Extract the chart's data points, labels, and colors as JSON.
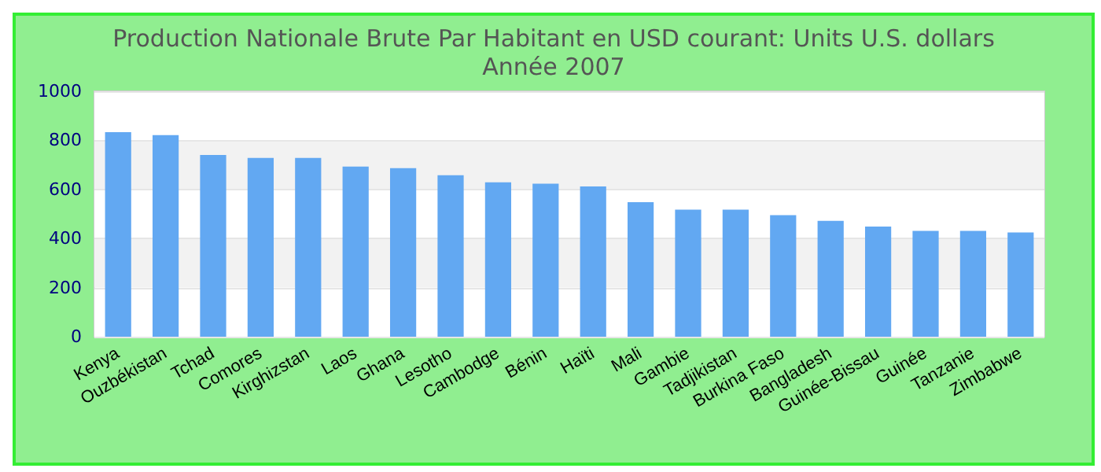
{
  "chart_data": {
    "type": "bar",
    "title": "Production Nationale Brute Par Habitant en USD courant: Units U.S. dollars",
    "subtitle": "Année 2007",
    "categories": [
      "Kenya",
      "Ouzbékistan",
      "Tchad",
      "Comores",
      "Kirghizstan",
      "Laos",
      "Ghana",
      "Lesotho",
      "Cambodge",
      "Bénin",
      "Haïti",
      "Mali",
      "Gambie",
      "Tadjikistan",
      "Burkina Faso",
      "Bangladesh",
      "Guinée-Bissau",
      "Guinée",
      "Tanzanie",
      "Zimbabwe"
    ],
    "values": [
      833,
      821,
      740,
      728,
      728,
      693,
      687,
      658,
      629,
      623,
      612,
      548,
      518,
      518,
      495,
      472,
      449,
      431,
      431,
      425
    ],
    "color": "#62a8f2",
    "ylim": [
      0,
      1000
    ],
    "yticks": [
      0,
      200,
      400,
      600,
      800,
      1000
    ],
    "grid": "y"
  }
}
